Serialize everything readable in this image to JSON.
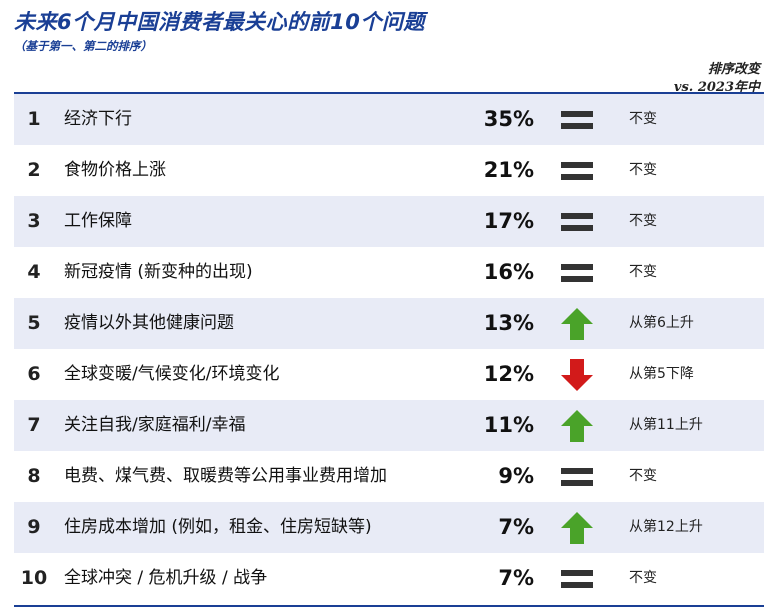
{
  "header": {
    "title": "未来6个月中国消费者最关心的前10个问题",
    "subtitle": "（基于第一、第二的排序）",
    "col_head_line1": "排序改变",
    "col_head_line2": "vs. 2023年中"
  },
  "colors": {
    "title_blue": "#1a3f95",
    "row_shade": "#e8ebf6",
    "up_arrow": "#4aa329",
    "down_arrow": "#d21a1a",
    "equal_bars": "#333333"
  },
  "rows": [
    {
      "rank": "1",
      "issue": "经济下行",
      "pct": "35%",
      "trend": "equal",
      "change": "不变"
    },
    {
      "rank": "2",
      "issue": "食物价格上涨",
      "pct": "21%",
      "trend": "equal",
      "change": "不变"
    },
    {
      "rank": "3",
      "issue": "工作保障",
      "pct": "17%",
      "trend": "equal",
      "change": "不变"
    },
    {
      "rank": "4",
      "issue": "新冠疫情 (新变种的出现)",
      "pct": "16%",
      "trend": "equal",
      "change": "不变"
    },
    {
      "rank": "5",
      "issue": "疫情以外其他健康问题",
      "pct": "13%",
      "trend": "up",
      "change": "从第6上升"
    },
    {
      "rank": "6",
      "issue": "全球变暖/气候变化/环境变化",
      "pct": "12%",
      "trend": "down",
      "change": "从第5下降"
    },
    {
      "rank": "7",
      "issue": "关注自我/家庭福利/幸福",
      "pct": "11%",
      "trend": "up",
      "change": "从第11上升"
    },
    {
      "rank": "8",
      "issue": "电费、煤气费、取暖费等公用事业费用增加",
      "pct": "9%",
      "trend": "equal",
      "change": "不变"
    },
    {
      "rank": "9",
      "issue": "住房成本增加 (例如，租金、住房短缺等)",
      "pct": "7%",
      "trend": "up",
      "change": "从第12上升"
    },
    {
      "rank": "10",
      "issue": "全球冲突 / 危机升级 / 战争",
      "pct": "7%",
      "trend": "equal",
      "change": "不变"
    }
  ]
}
